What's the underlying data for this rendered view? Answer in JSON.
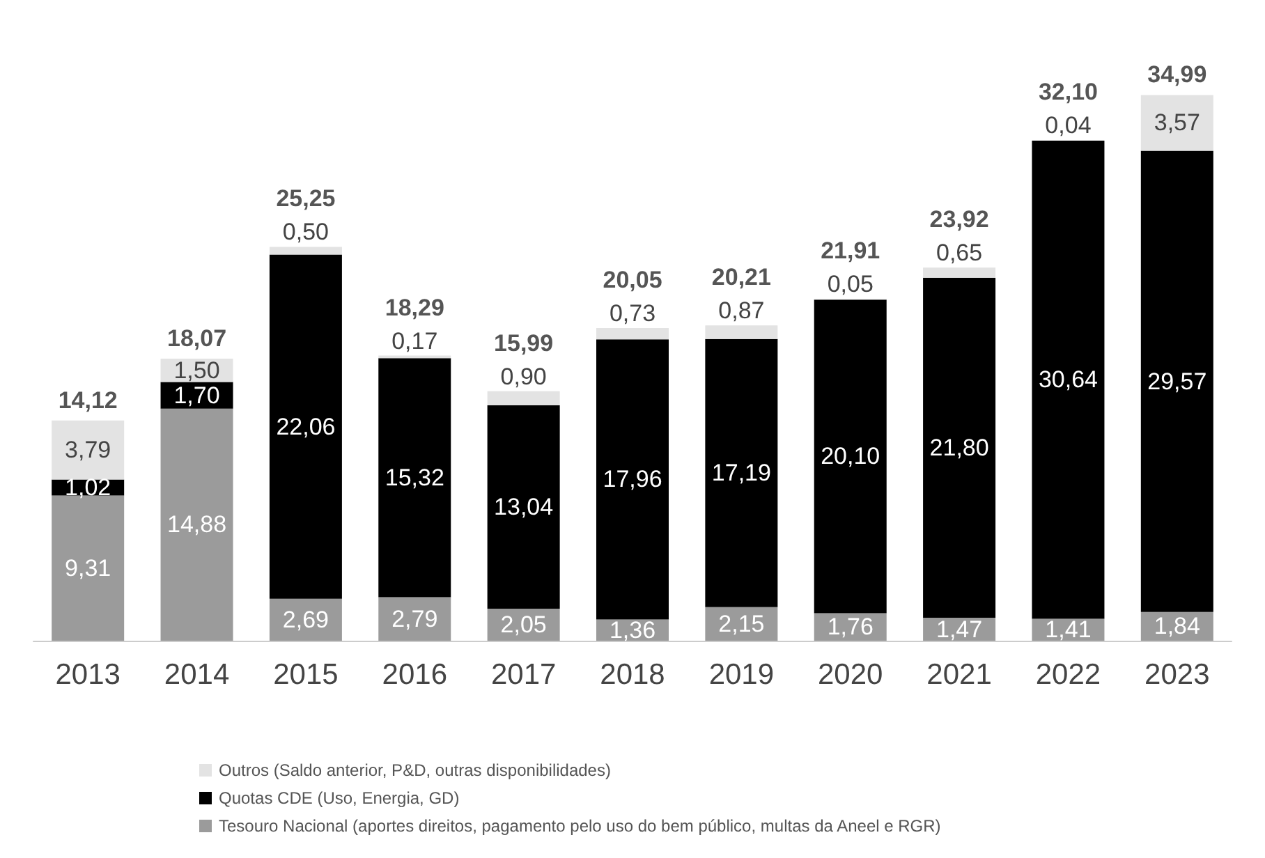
{
  "chart_data": {
    "type": "bar",
    "stacked": true,
    "categories": [
      "2013",
      "2014",
      "2015",
      "2016",
      "2017",
      "2018",
      "2019",
      "2020",
      "2021",
      "2022",
      "2023"
    ],
    "series": [
      {
        "name": "Tesouro Nacional (aportes direitos, pagamento pelo uso do bem público, multas da Aneel e RGR)",
        "color": "#9b9b9b",
        "values": [
          9.31,
          14.88,
          2.69,
          2.79,
          2.05,
          1.36,
          2.15,
          1.76,
          1.47,
          1.41,
          1.84
        ],
        "value_labels": [
          "9,31",
          "14,88",
          "2,69",
          "2,79",
          "2,05",
          "1,36",
          "2,15",
          "1,76",
          "1,47",
          "1,41",
          "1,84"
        ]
      },
      {
        "name": "Quotas CDE (Uso, Energia, GD)",
        "color": "#000000",
        "values": [
          1.02,
          1.7,
          22.06,
          15.32,
          13.04,
          17.96,
          17.19,
          20.1,
          21.8,
          30.64,
          29.57
        ],
        "value_labels": [
          "1,02",
          "1,70",
          "22,06",
          "15,32",
          "13,04",
          "17,96",
          "17,19",
          "20,10",
          "21,80",
          "30,64",
          "29,57"
        ]
      },
      {
        "name": "Outros (Saldo anterior, P&D, outras disponibilidades)",
        "color": "#e3e3e3",
        "values": [
          3.79,
          1.5,
          0.5,
          0.17,
          0.9,
          0.73,
          0.87,
          0.05,
          0.65,
          0.04,
          3.57
        ],
        "value_labels": [
          "3,79",
          "1,50",
          "0,50",
          "0,17",
          "0,90",
          "0,73",
          "0,87",
          "0,05",
          "0,65",
          "0,04",
          "3,57"
        ]
      }
    ],
    "totals": [
      "14,12",
      "18,07",
      "25,25",
      "18,29",
      "15,99",
      "20,05",
      "20,21",
      "21,91",
      "23,92",
      "32,10",
      "34,99"
    ],
    "legend": "bottom left"
  }
}
